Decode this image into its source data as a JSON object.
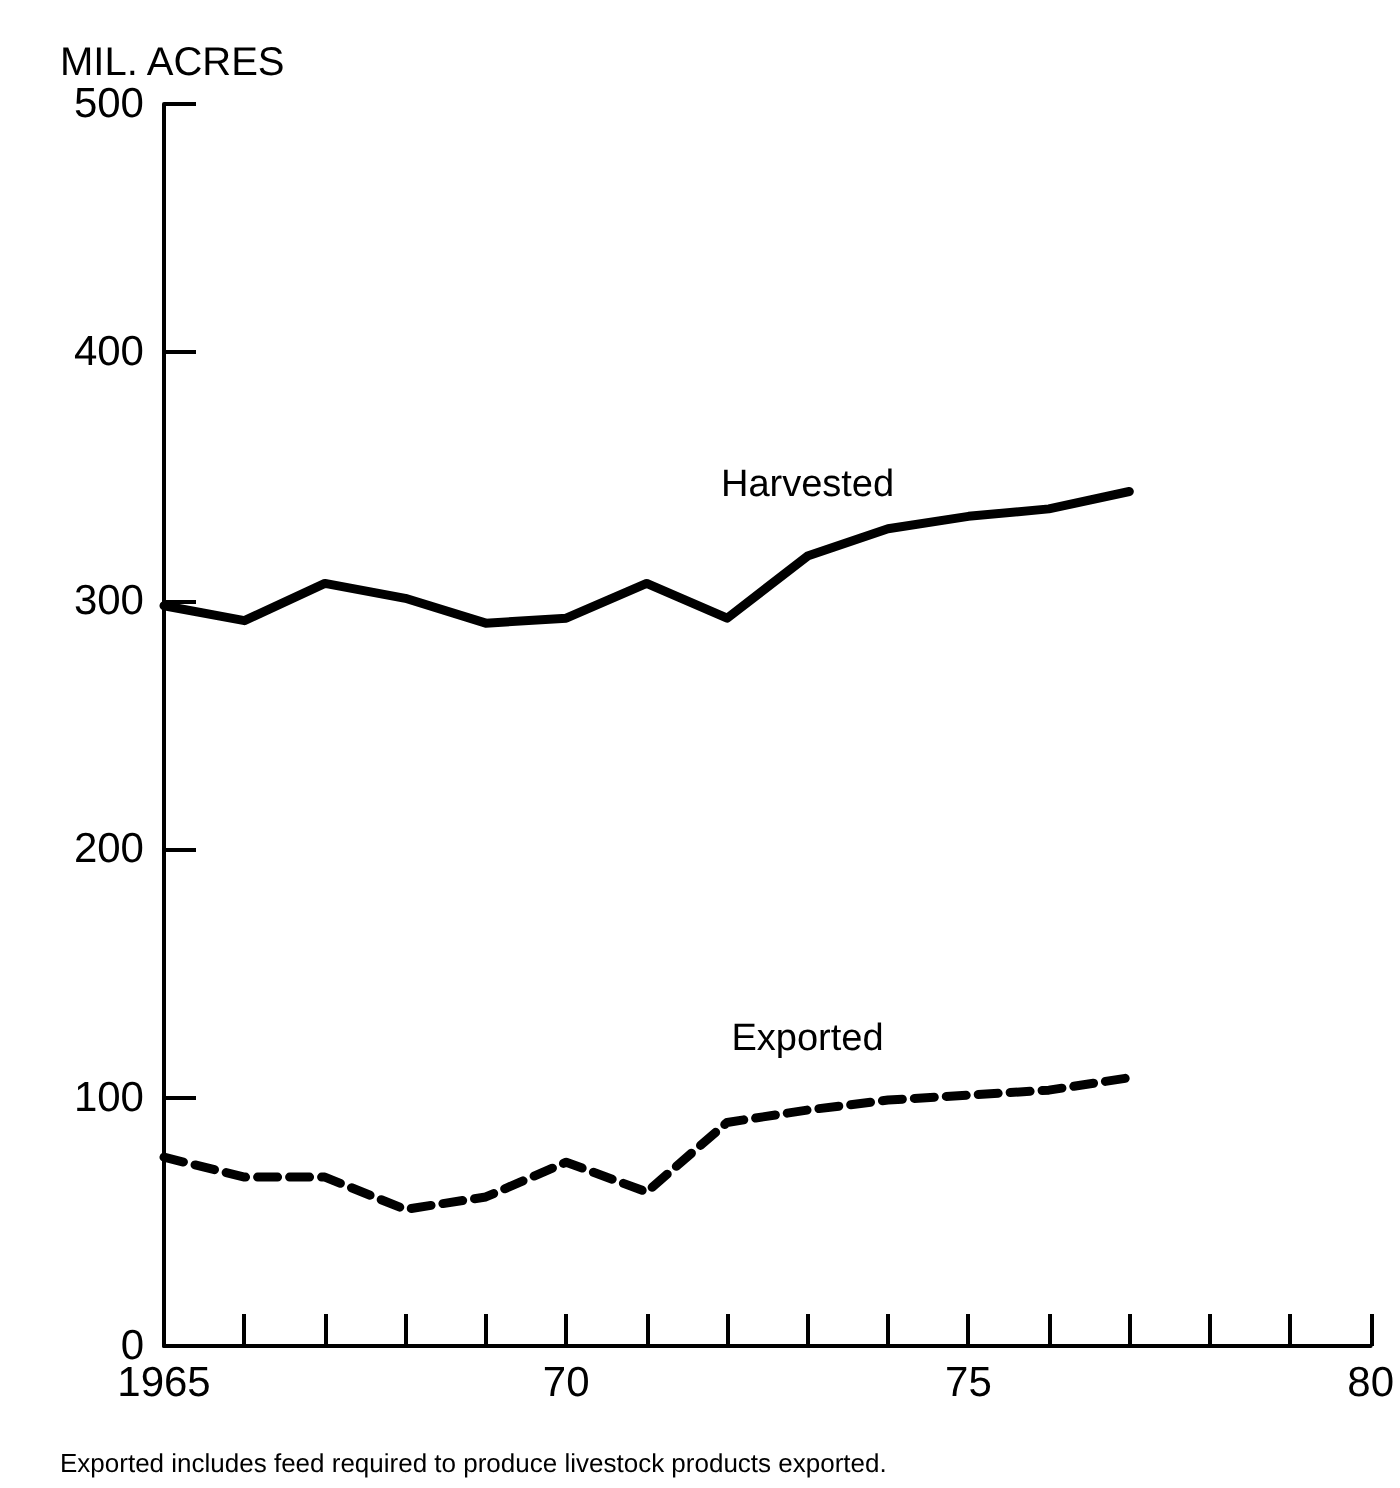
{
  "chart_data": {
    "type": "line",
    "ylabel": "MIL. ACRES",
    "x": [
      1965,
      1966,
      1967,
      1968,
      1969,
      1970,
      1971,
      1972,
      1973,
      1974,
      1975,
      1976,
      1977
    ],
    "series": [
      {
        "name": "Harvested",
        "color": "#000000",
        "line_style": "solid",
        "values": [
          298,
          292,
          307,
          301,
          291,
          293,
          307,
          293,
          318,
          329,
          334,
          337,
          344
        ]
      },
      {
        "name": "Exported",
        "color": "#000000",
        "line_style": "dashed",
        "values": [
          76,
          68,
          68,
          55,
          60,
          74,
          62,
          90,
          95,
          99,
          101,
          103,
          108
        ]
      }
    ],
    "xlim": [
      1965,
      1980
    ],
    "xticks": [
      1965,
      {
        "value": 1966,
        "label": null
      },
      {
        "value": 1967,
        "label": null
      },
      {
        "value": 1968,
        "label": null
      },
      {
        "value": 1969,
        "label": null
      },
      {
        "value": 1970,
        "label": "70"
      },
      {
        "value": 1971,
        "label": null
      },
      {
        "value": 1972,
        "label": null
      },
      {
        "value": 1973,
        "label": null
      },
      {
        "value": 1974,
        "label": null
      },
      {
        "value": 1975,
        "label": "75"
      },
      {
        "value": 1976,
        "label": null
      },
      {
        "value": 1977,
        "label": null
      },
      {
        "value": 1978,
        "label": null
      },
      {
        "value": 1979,
        "label": null
      },
      {
        "value": 1980,
        "label": "80"
      }
    ],
    "ylim": [
      0,
      500
    ],
    "yticks": [
      0,
      100,
      200,
      300,
      400,
      500
    ],
    "grid": false,
    "legend": false,
    "marker": "none",
    "annotations": [
      "Exported includes feed required to produce livestock products exported."
    ]
  }
}
